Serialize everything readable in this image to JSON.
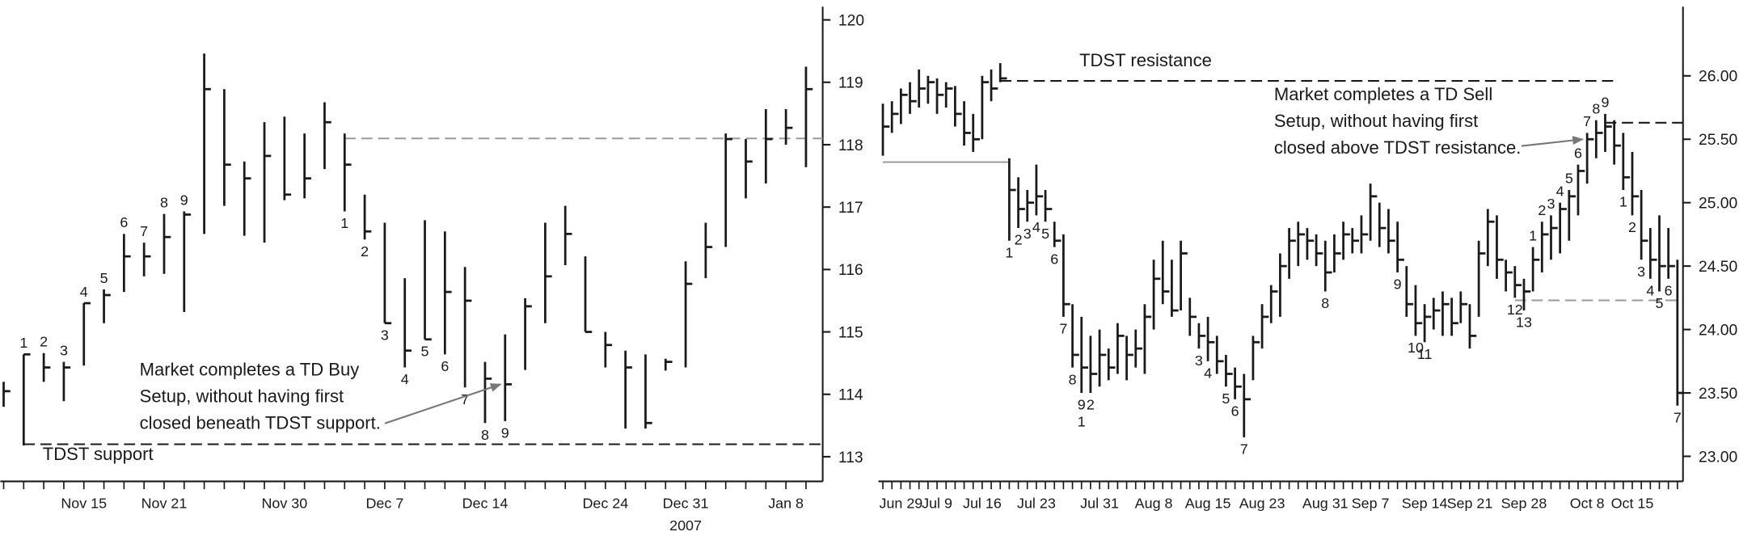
{
  "chart_data": [
    {
      "type": "hlc",
      "categories": [
        null,
        null,
        null,
        null,
        "Nov 15",
        null,
        null,
        null,
        "Nov 21",
        null,
        null,
        null,
        null,
        null,
        "Nov 30",
        null,
        null,
        null,
        null,
        "Dec 7",
        null,
        null,
        null,
        null,
        "Dec 14",
        null,
        null,
        null,
        null,
        null,
        "Dec 24",
        null,
        null,
        null,
        "Dec 31",
        null,
        null,
        null,
        null,
        "Jan 8",
        null
      ],
      "year_labels": [
        null,
        null,
        null,
        null,
        null,
        null,
        null,
        null,
        null,
        null,
        null,
        null,
        null,
        null,
        null,
        null,
        null,
        null,
        null,
        null,
        null,
        null,
        null,
        null,
        null,
        null,
        null,
        null,
        null,
        null,
        null,
        null,
        null,
        null,
        "2007",
        null,
        null,
        null,
        null,
        null,
        null
      ],
      "high": [
        114.2,
        114.64,
        114.66,
        114.52,
        115.46,
        115.68,
        116.57,
        116.43,
        116.89,
        116.93,
        119.46,
        118.89,
        117.73,
        118.36,
        118.45,
        118.18,
        118.68,
        118.18,
        117.2,
        116.75,
        115.86,
        116.79,
        116.61,
        116.04,
        114.52,
        114.96,
        115.54,
        116.75,
        117.02,
        116.21,
        115.0,
        114.7,
        114.64,
        114.57,
        116.13,
        116.75,
        118.18,
        118.09,
        118.57,
        118.57,
        119.25
      ],
      "low": [
        113.8,
        113.18,
        114.2,
        113.89,
        114.46,
        115.14,
        115.64,
        115.89,
        115.93,
        115.32,
        116.57,
        117.02,
        116.54,
        116.43,
        117.11,
        117.14,
        117.61,
        116.93,
        116.48,
        115.14,
        114.43,
        114.88,
        114.64,
        114.11,
        113.54,
        113.57,
        114.39,
        115.14,
        116.07,
        115.0,
        114.43,
        113.45,
        113.45,
        114.38,
        114.43,
        115.86,
        116.36,
        117.14,
        117.38,
        118.0,
        117.64
      ],
      "close": [
        114.05,
        114.64,
        114.43,
        114.43,
        115.46,
        115.59,
        116.21,
        116.21,
        116.52,
        116.88,
        118.89,
        117.68,
        117.46,
        117.82,
        117.2,
        117.46,
        118.36,
        117.68,
        116.61,
        115.14,
        114.7,
        114.88,
        115.64,
        115.5,
        114.25,
        114.16,
        115.41,
        115.89,
        116.57,
        115.0,
        114.79,
        114.43,
        113.54,
        114.52,
        115.77,
        116.36,
        118.09,
        117.73,
        118.09,
        118.27,
        118.89
      ],
      "color": "#1a1a1a",
      "sell_counts": [
        null,
        "1",
        "2",
        "3",
        "4",
        "5",
        "6",
        "7",
        "8",
        "9",
        null,
        null,
        null,
        null,
        null,
        null,
        null,
        null,
        null,
        null,
        null,
        null,
        null,
        null,
        null,
        null,
        null,
        null,
        null,
        null,
        null,
        null,
        null,
        null,
        null,
        null,
        null,
        null,
        null,
        null,
        null
      ],
      "buy_counts": [
        null,
        null,
        null,
        null,
        null,
        null,
        null,
        null,
        null,
        null,
        null,
        null,
        null,
        null,
        null,
        null,
        null,
        "1",
        "2",
        "3",
        "4",
        "5",
        "6",
        "7",
        "8",
        "9",
        null,
        null,
        null,
        null,
        null,
        null,
        null,
        null,
        null,
        null,
        null,
        null,
        null,
        null,
        null
      ],
      "count_color": "#1a1a1a",
      "ylim": [
        112.64,
        120.14
      ],
      "yticks": [
        113,
        114,
        115,
        116,
        117,
        118,
        119,
        120
      ],
      "lines": [
        {
          "value": 113.2,
          "start": 1,
          "end": null,
          "dash": true,
          "color": "#1a1a1a",
          "label": "TDST support"
        },
        {
          "value": 118.1,
          "start": 17,
          "end": null,
          "dash": true,
          "color": "#9a9a9a"
        }
      ],
      "annotations": [
        {
          "lines": [
            "Market completes a TD Buy",
            "Setup, without having first",
            "closed beneath TDST support."
          ],
          "target": 25
        }
      ]
    },
    {
      "type": "hlc",
      "categories": [
        null,
        null,
        "Jun 29",
        null,
        null,
        null,
        "Jul 9",
        null,
        null,
        null,
        null,
        "Jul 16",
        null,
        null,
        null,
        null,
        null,
        "Jul 23",
        null,
        null,
        null,
        null,
        null,
        null,
        "Jul 31",
        null,
        null,
        null,
        null,
        null,
        "Aug 8",
        null,
        null,
        null,
        null,
        null,
        "Aug 15",
        null,
        null,
        null,
        null,
        null,
        "Aug 23",
        null,
        null,
        null,
        null,
        null,
        null,
        "Aug 31",
        null,
        null,
        null,
        null,
        "Sep 7",
        null,
        null,
        null,
        null,
        null,
        "Sep 14",
        null,
        null,
        null,
        null,
        "Sep 21",
        null,
        null,
        null,
        null,
        null,
        "Sep 28",
        null,
        null,
        null,
        null,
        null,
        null,
        "Oct 8",
        null,
        null,
        null,
        null,
        "Oct 15",
        null,
        null,
        null,
        null,
        null
      ],
      "high": [
        25.78,
        25.8,
        25.9,
        25.95,
        26.05,
        26.0,
        25.98,
        25.95,
        25.92,
        25.8,
        25.7,
        26.0,
        26.05,
        26.1,
        25.35,
        25.2,
        25.1,
        25.3,
        25.1,
        24.85,
        24.75,
        24.2,
        24.1,
        23.95,
        24.0,
        23.85,
        24.05,
        23.95,
        24.0,
        24.2,
        24.55,
        24.7,
        24.55,
        24.7,
        24.25,
        24.05,
        24.1,
        23.95,
        23.8,
        23.7,
        23.65,
        23.95,
        24.2,
        24.35,
        24.6,
        24.8,
        24.85,
        24.8,
        24.75,
        24.7,
        24.75,
        24.85,
        24.8,
        24.9,
        25.15,
        25.0,
        24.95,
        24.85,
        24.5,
        24.35,
        24.2,
        24.25,
        24.3,
        24.25,
        24.3,
        24.2,
        24.7,
        24.95,
        24.9,
        24.55,
        24.5,
        24.4,
        24.65,
        24.85,
        24.9,
        25.0,
        25.1,
        25.3,
        25.55,
        25.65,
        25.7,
        25.65,
        25.55,
        25.4,
        25.1,
        24.8,
        24.9,
        24.8,
        24.55
      ],
      "low": [
        25.37,
        25.55,
        25.62,
        25.7,
        25.75,
        25.78,
        25.7,
        25.75,
        25.6,
        25.45,
        25.4,
        25.5,
        25.8,
        25.95,
        24.7,
        24.8,
        24.85,
        24.9,
        24.85,
        24.65,
        24.1,
        23.7,
        23.5,
        23.5,
        23.55,
        23.6,
        23.65,
        23.6,
        23.7,
        23.65,
        24.0,
        24.2,
        24.1,
        24.15,
        23.95,
        23.85,
        23.75,
        23.65,
        23.55,
        23.45,
        23.15,
        23.6,
        23.85,
        24.05,
        24.1,
        24.4,
        24.5,
        24.55,
        24.5,
        24.3,
        24.45,
        24.55,
        24.6,
        24.6,
        24.7,
        24.65,
        24.6,
        24.45,
        24.1,
        23.95,
        23.9,
        24.0,
        23.95,
        23.95,
        24.05,
        23.85,
        24.1,
        24.5,
        24.4,
        24.3,
        24.25,
        24.15,
        24.3,
        24.45,
        24.55,
        24.6,
        24.7,
        24.9,
        25.15,
        25.35,
        25.4,
        25.3,
        25.1,
        24.9,
        24.55,
        24.4,
        24.3,
        24.4,
        23.4
      ],
      "close": [
        25.6,
        25.7,
        25.85,
        25.8,
        25.9,
        25.95,
        25.85,
        25.9,
        25.7,
        25.55,
        25.5,
        25.95,
        25.9,
        25.98,
        25.1,
        24.95,
        25.0,
        25.05,
        24.95,
        24.7,
        24.2,
        23.8,
        23.7,
        23.65,
        23.8,
        23.7,
        23.95,
        23.8,
        23.85,
        24.1,
        24.4,
        24.3,
        24.15,
        24.6,
        24.1,
        23.95,
        23.9,
        23.75,
        23.65,
        23.55,
        23.45,
        23.9,
        24.1,
        24.3,
        24.5,
        24.7,
        24.75,
        24.7,
        24.6,
        24.45,
        24.6,
        24.75,
        24.7,
        24.75,
        25.05,
        24.8,
        24.7,
        24.55,
        24.2,
        24.05,
        24.1,
        24.15,
        24.2,
        24.05,
        24.2,
        23.95,
        24.6,
        24.85,
        24.55,
        24.45,
        24.35,
        24.3,
        24.55,
        24.75,
        24.8,
        24.95,
        25.05,
        25.25,
        25.5,
        25.55,
        25.6,
        25.45,
        25.2,
        25.05,
        24.7,
        24.55,
        24.5,
        24.5,
        23.5
      ],
      "color": "#1a1a1a",
      "sell_counts": [
        null,
        null,
        null,
        null,
        null,
        null,
        null,
        null,
        null,
        null,
        null,
        null,
        null,
        null,
        null,
        null,
        null,
        null,
        null,
        null,
        null,
        null,
        null,
        null,
        null,
        null,
        null,
        null,
        null,
        null,
        null,
        null,
        null,
        null,
        null,
        null,
        null,
        null,
        null,
        null,
        null,
        null,
        null,
        null,
        null,
        null,
        null,
        null,
        null,
        null,
        null,
        null,
        null,
        null,
        null,
        null,
        null,
        null,
        null,
        null,
        null,
        null,
        null,
        null,
        null,
        null,
        null,
        null,
        null,
        null,
        null,
        null,
        "1",
        "2",
        "3",
        "4",
        "5",
        "6",
        "7",
        "8",
        "9",
        null,
        null,
        null,
        null,
        null,
        null,
        null,
        null
      ],
      "buy_counts": [
        null,
        null,
        null,
        null,
        null,
        null,
        null,
        null,
        null,
        null,
        null,
        null,
        null,
        null,
        "1",
        "2",
        "3",
        "4",
        "5",
        "6",
        "7",
        "8",
        "9",
        null,
        null,
        null,
        null,
        null,
        null,
        null,
        null,
        null,
        null,
        null,
        null,
        null,
        null,
        null,
        null,
        null,
        null,
        null,
        null,
        null,
        null,
        null,
        null,
        null,
        null,
        null,
        null,
        null,
        null,
        null,
        null,
        null,
        null,
        null,
        null,
        null,
        null,
        null,
        null,
        null,
        null,
        null,
        null,
        null,
        null,
        null,
        null,
        null,
        null,
        null,
        null,
        null,
        null,
        null,
        null,
        null,
        null,
        null,
        "1",
        "2",
        "3",
        "4",
        "5",
        "6",
        "7"
      ],
      "countdown_counts": [
        null,
        null,
        null,
        null,
        null,
        null,
        null,
        null,
        null,
        null,
        null,
        null,
        null,
        null,
        null,
        null,
        null,
        null,
        null,
        null,
        null,
        null,
        "1",
        "2",
        null,
        null,
        null,
        null,
        null,
        null,
        null,
        null,
        null,
        null,
        null,
        "3",
        "4",
        null,
        "5",
        "6",
        "7",
        null,
        null,
        null,
        null,
        null,
        null,
        null,
        null,
        "8",
        null,
        null,
        null,
        null,
        null,
        null,
        null,
        "9",
        null,
        "10",
        "11",
        null,
        null,
        null,
        null,
        null,
        null,
        null,
        null,
        null,
        "12",
        "13",
        null,
        null,
        null,
        null,
        null,
        null,
        null,
        null,
        null,
        null,
        null,
        null,
        null,
        null,
        null,
        null,
        null
      ],
      "count_color": "#1a1a1a",
      "countdown_color": "#8a8a8a",
      "ylim": [
        22.82,
        26.51
      ],
      "yticks": [
        {
          "value": 23,
          "label": "23.00"
        },
        {
          "value": 23.5,
          "label": "23.50"
        },
        {
          "value": 24,
          "label": "24.00"
        },
        {
          "value": 24.5,
          "label": "24.50"
        },
        {
          "value": 25,
          "label": "25.00"
        },
        {
          "value": 25.5,
          "label": "25.50"
        },
        {
          "value": 26,
          "label": "26.00"
        }
      ],
      "lines": [
        {
          "value": 25.96,
          "start": 13,
          "end": 81,
          "dash": true,
          "color": "#1a1a1a",
          "label": "TDST resistance"
        },
        {
          "value": 25.32,
          "start": 0,
          "end": 14,
          "dash": false,
          "color": "#9a9a9a"
        },
        {
          "value": 25.63,
          "start": 80,
          "end": null,
          "dash": true,
          "color": "#1a1a1a"
        },
        {
          "value": 24.23,
          "start": 70,
          "end": 88,
          "dash": true,
          "color": "#9a9a9a"
        }
      ],
      "annotations": [
        {
          "lines": [
            "Market completes a TD Sell",
            "Setup, without having first",
            "closed above TDST resistance."
          ],
          "target": 78
        }
      ]
    }
  ]
}
